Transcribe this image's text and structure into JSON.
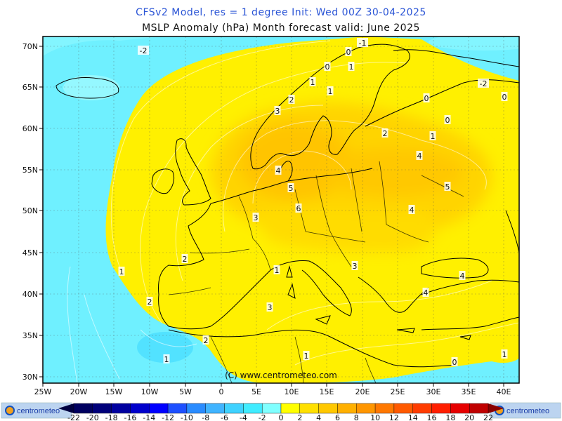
{
  "header": {
    "line1": "CFSv2 Model, res = 1 degree    Init: Wed 00Z 30-04-2025",
    "line2": "MSLP Anomaly (hPa)     Month forecast valid: June 2025"
  },
  "map": {
    "lat_labels": [
      "70N",
      "65N",
      "60N",
      "55N",
      "50N",
      "45N",
      "40N",
      "35N",
      "30N"
    ],
    "lon_labels": [
      "25W",
      "20W",
      "15W",
      "10W",
      "5W",
      "0",
      "5E",
      "10E",
      "15E",
      "20E",
      "25E",
      "30E",
      "35E",
      "40E"
    ],
    "contour_labels": [
      "-2",
      "0",
      "1",
      "2",
      "3",
      "4",
      "5",
      "6",
      "4",
      "5",
      "4",
      "3",
      "2",
      "1",
      "3",
      "4",
      "4",
      "3",
      "2",
      "1",
      "0",
      "1",
      "2",
      "1",
      "1",
      "0",
      "-1",
      "-2",
      "0",
      "0",
      "1",
      "0",
      "2",
      "1",
      "1"
    ],
    "copyright": "(C) www.centrometeo.com"
  },
  "colorbar": {
    "labels": [
      "-22",
      "-20",
      "-18",
      "-16",
      "-14",
      "-12",
      "-10",
      "-8",
      "-6",
      "-4",
      "-2",
      "0",
      "2",
      "4",
      "6",
      "8",
      "10",
      "12",
      "14",
      "16",
      "18",
      "20",
      "22"
    ],
    "colors": [
      "#000060",
      "#00007a",
      "#0000a0",
      "#0000cc",
      "#0000ff",
      "#1e50ff",
      "#2a8cff",
      "#40b4ff",
      "#3fd2ff",
      "#40ecff",
      "#80ffff",
      "#ffff00",
      "#ffe000",
      "#ffc800",
      "#ffb000",
      "#ff9600",
      "#ff7800",
      "#ff5a00",
      "#ff3c00",
      "#ff1e00",
      "#e60000",
      "#c00000"
    ],
    "logo_left": "centrometeo",
    "logo_right": "centrometeo"
  },
  "colors": {
    "cyan": "#6ff0ff",
    "yellow": "#fff000",
    "gold": "#ffd000",
    "orange": "#ffc400"
  }
}
